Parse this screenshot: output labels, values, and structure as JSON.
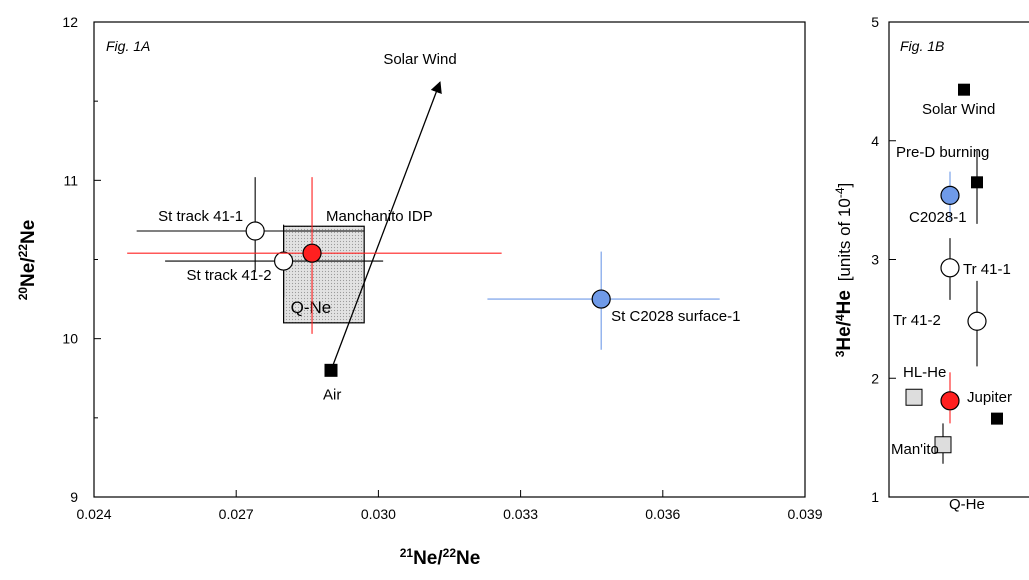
{
  "chart_data": [
    {
      "type": "scatter",
      "panel_label": "Fig. 1A",
      "xlabel": "21Ne/22Ne",
      "ylabel": "20Ne/22Ne",
      "xlim": [
        0.024,
        0.039
      ],
      "ylim": [
        9,
        12
      ],
      "xticks": [
        "0.024",
        "0.027",
        "0.030",
        "0.033",
        "0.036",
        "0.039"
      ],
      "yticks": [
        "9",
        "10",
        "11",
        "12"
      ],
      "grid": false,
      "points": [
        {
          "name": "St track 41-1",
          "x": 0.0274,
          "y": 10.68,
          "xerr": [
            0.0249,
            0.0297
          ],
          "yerr": [
            10.42,
            11.02
          ],
          "marker": "circle-open",
          "color": "#000000"
        },
        {
          "name": "St track 41-2",
          "x": 0.028,
          "y": 10.49,
          "xerr": [
            0.0255,
            0.0301
          ],
          "yerr": [
            10.26,
            10.72
          ],
          "marker": "circle-open",
          "color": "#000000"
        },
        {
          "name": "Manchanito IDP",
          "x": 0.0286,
          "y": 10.54,
          "xerr": [
            0.0247,
            0.0326
          ],
          "yerr": [
            10.03,
            11.02
          ],
          "marker": "circle-filled",
          "color": "#ff2020"
        },
        {
          "name": "St C2028 surface-1",
          "x": 0.0347,
          "y": 10.25,
          "xerr": [
            0.0323,
            0.0372
          ],
          "yerr": [
            9.93,
            10.55
          ],
          "marker": "circle-filled",
          "color": "#6f9ae8"
        },
        {
          "name": "Air",
          "x": 0.029,
          "y": 9.8,
          "marker": "square-filled",
          "color": "#000000"
        }
      ],
      "box": {
        "name": "Q-Ne",
        "x": [
          0.028,
          0.0297
        ],
        "y": [
          10.1,
          10.71
        ]
      },
      "arrow": {
        "label": "Solar Wind",
        "from": [
          0.029,
          9.8
        ],
        "to": [
          0.0313,
          11.62
        ]
      }
    },
    {
      "type": "scatter",
      "panel_label": "Fig. 1B",
      "ylabel": "3He/4He [units of 10-4]",
      "ylim": [
        1,
        5
      ],
      "yticks": [
        "1",
        "2",
        "3",
        "4",
        "5"
      ],
      "labels": [
        "Solar Wind",
        "Pre-D burning",
        "C2028-1",
        "Tr 41-1",
        "Tr 41-2",
        "HL-He",
        "Jupiter",
        "Man'ito",
        "Q-He"
      ],
      "points": [
        {
          "name": "Solar Wind",
          "y": 4.43,
          "marker": "square-filled",
          "color": "#000000"
        },
        {
          "name": "Pre-D burning",
          "y": 3.65,
          "marker": "square-filled",
          "color": "#000000"
        },
        {
          "name": "C2028-1",
          "y": 3.54,
          "marker": "circle-filled",
          "color": "#6f9ae8"
        },
        {
          "name": "Tr 41-1",
          "y": 2.93,
          "marker": "circle-open",
          "color": "#000000"
        },
        {
          "name": "Tr 41-2",
          "y": 2.48,
          "marker": "circle-open",
          "color": "#000000"
        },
        {
          "name": "HL-He",
          "y": 1.84,
          "marker": "square-gray",
          "color": "#dddddd"
        },
        {
          "name": "Man'ito",
          "y": 1.81,
          "marker": "circle-filled",
          "color": "#ff2020"
        },
        {
          "name": "Jupiter",
          "y": 1.66,
          "marker": "square-filled",
          "color": "#000000"
        },
        {
          "name": "Q-He",
          "y": 1.44,
          "marker": "square-gray",
          "color": "#dddddd"
        }
      ]
    }
  ]
}
